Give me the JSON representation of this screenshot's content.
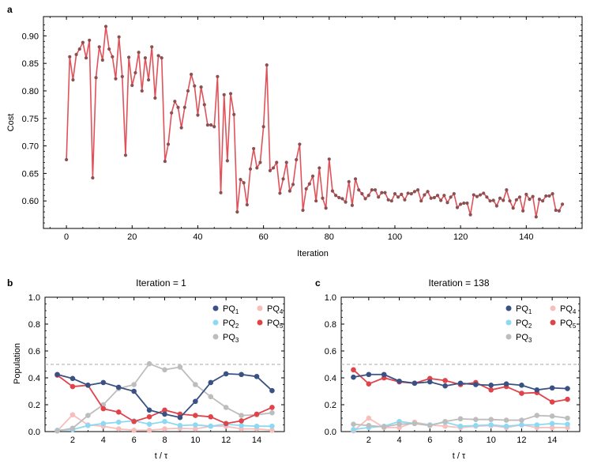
{
  "colors": {
    "cost_line": "#e0525a",
    "cost_marker": "#8a5052",
    "PQ1": "#3a5283",
    "PQ2": "#8dd9f4",
    "PQ3": "#bdbdbd",
    "PQ4": "#f8bebb",
    "PQ5": "#e0434a",
    "reference_line": "#aaaaaa"
  },
  "chart_data": [
    {
      "panel": "a",
      "type": "line",
      "title": "",
      "xlabel": "Iteration",
      "ylabel": "Cost",
      "xlim": [
        -7,
        157
      ],
      "ylim": [
        0.55,
        0.935
      ],
      "xticks": [
        0,
        20,
        40,
        60,
        80,
        100,
        120,
        140
      ],
      "yticks": [
        0.6,
        0.65,
        0.7,
        0.75,
        0.8,
        0.85,
        0.9
      ],
      "ytick_labels": [
        "0.60",
        "0.65",
        "0.70",
        "0.75",
        "0.80",
        "0.85",
        "0.90"
      ],
      "x_start": 0,
      "values": [
        0.675,
        0.862,
        0.82,
        0.866,
        0.876,
        0.888,
        0.86,
        0.892,
        0.642,
        0.824,
        0.88,
        0.856,
        0.917,
        0.876,
        0.862,
        0.822,
        0.898,
        0.826,
        0.683,
        0.861,
        0.81,
        0.833,
        0.87,
        0.8,
        0.86,
        0.82,
        0.88,
        0.787,
        0.864,
        0.86,
        0.672,
        0.703,
        0.76,
        0.781,
        0.77,
        0.733,
        0.77,
        0.8,
        0.83,
        0.809,
        0.756,
        0.807,
        0.775,
        0.738,
        0.738,
        0.735,
        0.826,
        0.615,
        0.793,
        0.673,
        0.795,
        0.757,
        0.58,
        0.639,
        0.633,
        0.593,
        0.658,
        0.695,
        0.66,
        0.67,
        0.735,
        0.847,
        0.655,
        0.66,
        0.67,
        0.614,
        0.64,
        0.67,
        0.618,
        0.63,
        0.675,
        0.703,
        0.583,
        0.622,
        0.631,
        0.645,
        0.6,
        0.66,
        0.605,
        0.587,
        0.676,
        0.618,
        0.61,
        0.606,
        0.604,
        0.598,
        0.635,
        0.592,
        0.64,
        0.62,
        0.613,
        0.604,
        0.61,
        0.62,
        0.62,
        0.607,
        0.615,
        0.615,
        0.602,
        0.6,
        0.613,
        0.607,
        0.612,
        0.602,
        0.614,
        0.613,
        0.617,
        0.62,
        0.6,
        0.611,
        0.617,
        0.605,
        0.606,
        0.61,
        0.601,
        0.61,
        0.597,
        0.607,
        0.613,
        0.588,
        0.594,
        0.596,
        0.596,
        0.575,
        0.611,
        0.608,
        0.611,
        0.614,
        0.607,
        0.6,
        0.601,
        0.591,
        0.605,
        0.601,
        0.62,
        0.6,
        0.587,
        0.602,
        0.607,
        0.582,
        0.612,
        0.603,
        0.608,
        0.571,
        0.603,
        0.6,
        0.609,
        0.609,
        0.613,
        0.583,
        0.582,
        0.594
      ]
    },
    {
      "panel": "b",
      "type": "line",
      "title": "Iteration = 1",
      "xlabel": "t / τ",
      "ylabel": "Population",
      "xlim": [
        0.2,
        15.8
      ],
      "ylim": [
        0,
        1.0
      ],
      "xticks": [
        2,
        4,
        6,
        8,
        10,
        12,
        14
      ],
      "yticks": [
        0.0,
        0.2,
        0.4,
        0.6,
        0.8,
        1.0
      ],
      "ytick_labels": [
        "0.0",
        "0.2",
        "0.4",
        "0.6",
        "0.8",
        "1.0"
      ],
      "reference_y": 0.5,
      "x": [
        1,
        2,
        3,
        4,
        5,
        6,
        7,
        8,
        9,
        10,
        11,
        12,
        13,
        14,
        15
      ],
      "series": [
        {
          "name": "PQ1",
          "values": [
            0.425,
            0.395,
            0.345,
            0.365,
            0.33,
            0.3,
            0.16,
            0.13,
            0.105,
            0.225,
            0.365,
            0.43,
            0.425,
            0.41,
            0.305
          ]
        },
        {
          "name": "PQ2",
          "values": [
            0.01,
            0.015,
            0.045,
            0.06,
            0.07,
            0.08,
            0.055,
            0.075,
            0.045,
            0.05,
            0.04,
            0.055,
            0.045,
            0.04,
            0.04
          ]
        },
        {
          "name": "PQ3",
          "values": [
            0.005,
            0.025,
            0.12,
            0.2,
            0.32,
            0.35,
            0.505,
            0.46,
            0.48,
            0.35,
            0.26,
            0.18,
            0.12,
            0.125,
            0.14
          ]
        },
        {
          "name": "PQ4",
          "values": [
            0.005,
            0.125,
            0.05,
            0.04,
            0.02,
            0.01,
            0.01,
            0.02,
            0.025,
            0.02,
            0.04,
            0.04,
            0.02,
            0.02,
            0.01
          ]
        },
        {
          "name": "PQ5",
          "values": [
            0.42,
            0.335,
            0.345,
            0.17,
            0.145,
            0.075,
            0.11,
            0.16,
            0.13,
            0.12,
            0.11,
            0.06,
            0.08,
            0.13,
            0.18
          ]
        }
      ]
    },
    {
      "panel": "c",
      "type": "line",
      "title": "Iteration = 138",
      "xlabel": "t / τ",
      "ylabel": "",
      "xlim": [
        0.2,
        15.8
      ],
      "ylim": [
        0,
        1.0
      ],
      "xticks": [
        2,
        4,
        6,
        8,
        10,
        12,
        14
      ],
      "yticks": [
        0.0,
        0.2,
        0.4,
        0.6,
        0.8,
        1.0
      ],
      "ytick_labels": [
        "0.0",
        "0.2",
        "0.4",
        "0.6",
        "0.8",
        "1.0"
      ],
      "reference_y": 0.5,
      "x": [
        1,
        2,
        3,
        4,
        5,
        6,
        7,
        8,
        9,
        10,
        11,
        12,
        13,
        14,
        15
      ],
      "series": [
        {
          "name": "PQ1",
          "values": [
            0.405,
            0.425,
            0.425,
            0.375,
            0.36,
            0.37,
            0.34,
            0.36,
            0.35,
            0.345,
            0.355,
            0.345,
            0.31,
            0.325,
            0.32
          ]
        },
        {
          "name": "PQ2",
          "values": [
            0.015,
            0.03,
            0.04,
            0.075,
            0.06,
            0.05,
            0.07,
            0.04,
            0.045,
            0.05,
            0.04,
            0.05,
            0.05,
            0.06,
            0.055
          ]
        },
        {
          "name": "PQ3",
          "values": [
            0.055,
            0.045,
            0.035,
            0.055,
            0.06,
            0.045,
            0.075,
            0.095,
            0.09,
            0.09,
            0.085,
            0.085,
            0.12,
            0.115,
            0.1
          ]
        },
        {
          "name": "PQ4",
          "values": [
            0.005,
            0.1,
            0.03,
            0.03,
            0.07,
            0.05,
            0.04,
            0.03,
            0.04,
            0.045,
            0.03,
            0.05,
            0.03,
            0.03,
            0.03
          ]
        },
        {
          "name": "PQ5",
          "values": [
            0.46,
            0.355,
            0.4,
            0.37,
            0.36,
            0.395,
            0.38,
            0.35,
            0.365,
            0.31,
            0.335,
            0.285,
            0.29,
            0.22,
            0.24
          ]
        }
      ]
    }
  ],
  "panels": {
    "a": {
      "letter": "a"
    },
    "b": {
      "letter": "b"
    },
    "c": {
      "letter": "c"
    }
  },
  "legend": {
    "items": [
      {
        "name": "PQ1",
        "base": "PQ",
        "sub": "1"
      },
      {
        "name": "PQ2",
        "base": "PQ",
        "sub": "2"
      },
      {
        "name": "PQ3",
        "base": "PQ",
        "sub": "3"
      },
      {
        "name": "PQ4",
        "base": "PQ",
        "sub": "4"
      },
      {
        "name": "PQ5",
        "base": "PQ",
        "sub": "5"
      }
    ]
  }
}
